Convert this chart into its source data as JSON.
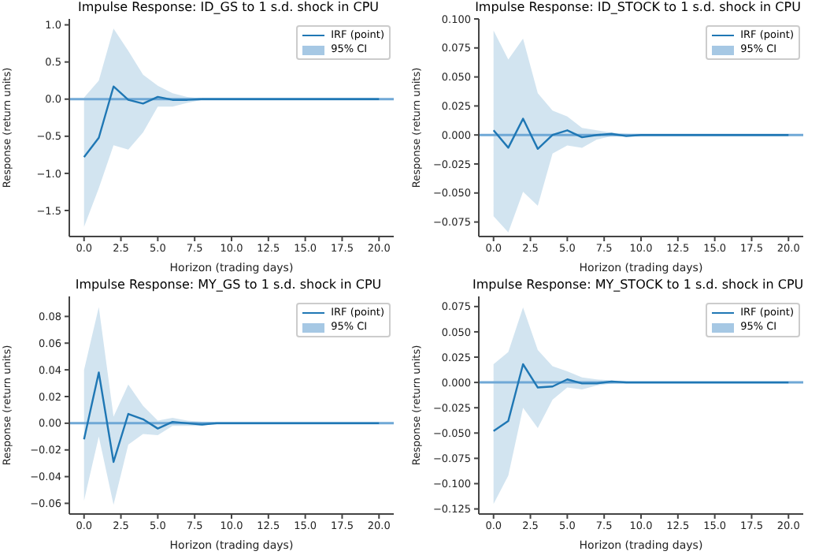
{
  "chart_data": [
    {
      "type": "line",
      "title": "Impulse Response: ID_GS to 1 s.d. shock in CPU",
      "xlabel": "Horizon (trading days)",
      "ylabel": "Response (return units)",
      "legend": "top right",
      "annotations": [
        "95% CI"
      ],
      "x": [
        0,
        1,
        2,
        3,
        4,
        5,
        6,
        7,
        8,
        9,
        10,
        11,
        12,
        13,
        14,
        15,
        16,
        17,
        18,
        19,
        20
      ],
      "xlim": [
        -1,
        21
      ],
      "xticks": [
        {
          "value": 0,
          "label": "0.0"
        },
        2.5,
        {
          "value": 5,
          "label": "5.0"
        },
        7.5,
        {
          "value": 10,
          "label": "10.0"
        },
        12.5,
        {
          "value": 15,
          "label": "15.0"
        },
        17.5,
        {
          "value": 20,
          "label": "20.0"
        }
      ],
      "ylim": [
        -1.85,
        1.08
      ],
      "yticks": [
        {
          "value": -1.5,
          "label": "−1.5"
        },
        {
          "value": -1,
          "label": "−1.0"
        },
        {
          "value": -0.5,
          "label": "−0.5"
        },
        {
          "value": 0,
          "label": "0.0"
        },
        0.5,
        {
          "value": 1,
          "label": "1.0"
        }
      ],
      "ref_lines": [
        {
          "axis": "y",
          "value": 0,
          "color": "#6fa8d6"
        }
      ],
      "series": [
        {
          "name": "IRF (point)",
          "color": "#1f77b4",
          "values": [
            -0.78,
            -0.52,
            0.17,
            -0.01,
            -0.06,
            0.03,
            -0.01,
            -0.01,
            0,
            0,
            0,
            0,
            0,
            0,
            0,
            0,
            0,
            0,
            0,
            0,
            0
          ],
          "lower": [
            -1.72,
            -1.2,
            -0.62,
            -0.68,
            -0.45,
            -0.1,
            -0.1,
            -0.05,
            -0.01,
            0,
            0,
            0,
            0,
            0,
            0,
            0,
            0,
            0,
            0,
            0,
            0
          ],
          "upper": [
            0.02,
            0.25,
            0.95,
            0.65,
            0.33,
            0.18,
            0.08,
            0.03,
            0.01,
            0,
            0,
            0,
            0,
            0,
            0,
            0,
            0,
            0,
            0,
            0,
            0
          ]
        }
      ]
    },
    {
      "type": "line",
      "title": "Impulse Response: ID_STOCK to 1 s.d. shock in CPU",
      "xlabel": "Horizon (trading days)",
      "ylabel": "Response (return units)",
      "legend": "top right",
      "annotations": [
        "95% CI"
      ],
      "x": [
        0,
        1,
        2,
        3,
        4,
        5,
        6,
        7,
        8,
        9,
        10,
        11,
        12,
        13,
        14,
        15,
        16,
        17,
        18,
        19,
        20
      ],
      "xlim": [
        -1,
        21
      ],
      "xticks": [
        {
          "value": 0,
          "label": "0.0"
        },
        2.5,
        {
          "value": 5,
          "label": "5.0"
        },
        7.5,
        {
          "value": 10,
          "label": "10.0"
        },
        12.5,
        {
          "value": 15,
          "label": "15.0"
        },
        17.5,
        {
          "value": 20,
          "label": "20.0"
        }
      ],
      "ylim": [
        -0.0875,
        0.1
      ],
      "yticks": [
        {
          "value": -0.075,
          "label": "−0.075"
        },
        {
          "value": -0.05,
          "label": "−0.050"
        },
        {
          "value": -0.025,
          "label": "−0.025"
        },
        {
          "value": 0,
          "label": "0.000"
        },
        0.025,
        {
          "value": 0.05,
          "label": "0.050"
        },
        0.075,
        {
          "value": 0.1,
          "label": "0.100"
        }
      ],
      "ref_lines": [
        {
          "axis": "y",
          "value": 0,
          "color": "#6fa8d6"
        }
      ],
      "series": [
        {
          "name": "IRF (point)",
          "color": "#1f77b4",
          "values": [
            0.004,
            -0.011,
            0.014,
            -0.012,
            0,
            0.004,
            -0.002,
            0,
            0.001,
            -0.001,
            0,
            0,
            0,
            0,
            0,
            0,
            0,
            0,
            0,
            0,
            0
          ],
          "lower": [
            -0.07,
            -0.084,
            -0.049,
            -0.061,
            -0.016,
            -0.009,
            -0.011,
            -0.004,
            -0.001,
            -0.001,
            0,
            0,
            0,
            0,
            0,
            0,
            0,
            0,
            0,
            0,
            0
          ],
          "upper": [
            0.09,
            0.065,
            0.083,
            0.036,
            0.021,
            0.016,
            0.006,
            0.004,
            0.002,
            0.001,
            0,
            0,
            0,
            0,
            0,
            0,
            0,
            0,
            0,
            0,
            0
          ]
        }
      ]
    },
    {
      "type": "line",
      "title": "Impulse Response: MY_GS to 1 s.d. shock in CPU",
      "xlabel": "Horizon (trading days)",
      "ylabel": "Response (return units)",
      "legend": "top right",
      "annotations": [
        "95% CI"
      ],
      "x": [
        0,
        1,
        2,
        3,
        4,
        5,
        6,
        7,
        8,
        9,
        10,
        11,
        12,
        13,
        14,
        15,
        16,
        17,
        18,
        19,
        20
      ],
      "xlim": [
        -1,
        21
      ],
      "xticks": [
        {
          "value": 0,
          "label": "0.0"
        },
        2.5,
        {
          "value": 5,
          "label": "5.0"
        },
        7.5,
        {
          "value": 10,
          "label": "10.0"
        },
        12.5,
        {
          "value": 15,
          "label": "15.0"
        },
        17.5,
        {
          "value": 20,
          "label": "20.0"
        }
      ],
      "ylim": [
        -0.068,
        0.095
      ],
      "yticks": [
        {
          "value": -0.06,
          "label": "−0.06"
        },
        {
          "value": -0.04,
          "label": "−0.04"
        },
        {
          "value": -0.02,
          "label": "−0.02"
        },
        {
          "value": 0,
          "label": "0.00"
        },
        0.02,
        0.04,
        0.06,
        0.08
      ],
      "ref_lines": [
        {
          "axis": "y",
          "value": 0,
          "color": "#6fa8d6"
        }
      ],
      "series": [
        {
          "name": "IRF (point)",
          "color": "#1f77b4",
          "values": [
            -0.012,
            0.038,
            -0.029,
            0.007,
            0.003,
            -0.004,
            0.001,
            0,
            -0.001,
            0,
            0,
            0,
            0,
            0,
            0,
            0,
            0,
            0,
            0,
            0,
            0
          ],
          "lower": [
            -0.058,
            -0.01,
            -0.061,
            -0.016,
            -0.008,
            -0.009,
            -0.002,
            -0.002,
            -0.002,
            0,
            0,
            0,
            0,
            0,
            0,
            0,
            0,
            0,
            0,
            0,
            0
          ],
          "upper": [
            0.04,
            0.087,
            0.005,
            0.029,
            0.013,
            0.002,
            0.004,
            0.002,
            0.001,
            0,
            0,
            0,
            0,
            0,
            0,
            0,
            0,
            0,
            0,
            0,
            0
          ]
        }
      ]
    },
    {
      "type": "line",
      "title": "Impulse Response: MY_STOCK to 1 s.d. shock in CPU",
      "xlabel": "Horizon (trading days)",
      "ylabel": "Response (return units)",
      "legend": "top right",
      "annotations": [
        "95% CI"
      ],
      "x": [
        0,
        1,
        2,
        3,
        4,
        5,
        6,
        7,
        8,
        9,
        10,
        11,
        12,
        13,
        14,
        15,
        16,
        17,
        18,
        19,
        20
      ],
      "xlim": [
        -1,
        21
      ],
      "xticks": [
        {
          "value": 0,
          "label": "0.0"
        },
        2.5,
        {
          "value": 5,
          "label": "5.0"
        },
        7.5,
        {
          "value": 10,
          "label": "10.0"
        },
        12.5,
        {
          "value": 15,
          "label": "15.0"
        },
        17.5,
        {
          "value": 20,
          "label": "20.0"
        }
      ],
      "ylim": [
        -0.13,
        0.085
      ],
      "yticks": [
        {
          "value": -0.125,
          "label": "−0.125"
        },
        {
          "value": -0.1,
          "label": "−0.100"
        },
        {
          "value": -0.075,
          "label": "−0.075"
        },
        {
          "value": -0.05,
          "label": "−0.050"
        },
        {
          "value": -0.025,
          "label": "−0.025"
        },
        {
          "value": 0,
          "label": "0.000"
        },
        0.025,
        {
          "value": 0.05,
          "label": "0.050"
        },
        0.075
      ],
      "ref_lines": [
        {
          "axis": "y",
          "value": 0,
          "color": "#6fa8d6"
        }
      ],
      "series": [
        {
          "name": "IRF (point)",
          "color": "#1f77b4",
          "values": [
            -0.048,
            -0.038,
            0.018,
            -0.005,
            -0.004,
            0.003,
            -0.001,
            -0.001,
            0.001,
            0,
            0,
            0,
            0,
            0,
            0,
            0,
            0,
            0,
            0,
            0,
            0
          ],
          "lower": [
            -0.12,
            -0.092,
            -0.025,
            -0.045,
            -0.017,
            -0.005,
            -0.007,
            -0.003,
            -0.001,
            0,
            0,
            0,
            0,
            0,
            0,
            0,
            0,
            0,
            0,
            0,
            0
          ],
          "upper": [
            0.018,
            0.03,
            0.074,
            0.032,
            0.016,
            0.011,
            0.005,
            0.003,
            0.002,
            0.001,
            0,
            0,
            0,
            0,
            0,
            0,
            0,
            0,
            0,
            0,
            0
          ]
        }
      ]
    }
  ]
}
